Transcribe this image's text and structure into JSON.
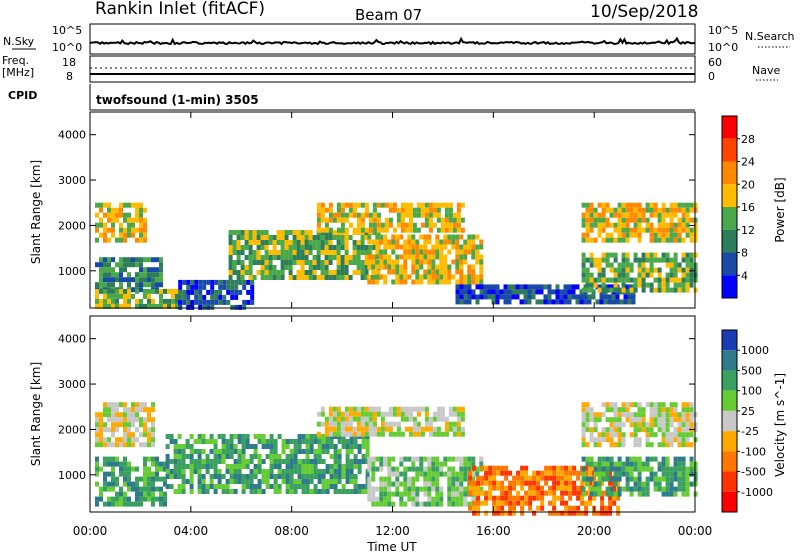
{
  "header": {
    "title": "Rankin Inlet (fitACF)",
    "beam": "Beam 07",
    "date": "10/Sep/2018"
  },
  "nsky_panel": {
    "left_label": "N.Sky",
    "right_label": "N.Search",
    "y_ticks": [
      "10^5",
      "10^0"
    ]
  },
  "freq_panel": {
    "left_label_1": "Freq.",
    "left_label_2": "[MHz]",
    "left_ticks": [
      "18",
      "8"
    ],
    "right_ticks": [
      "60",
      "0"
    ],
    "right_label": "Nave",
    "cpid_label": "CPID"
  },
  "cpid_text": "twofsound (1-min) 3505",
  "x_axis": {
    "title": "Time UT",
    "ticks": [
      "00:00",
      "04:00",
      "08:00",
      "12:00",
      "16:00",
      "20:00",
      "00:00"
    ]
  },
  "chart_data": [
    {
      "type": "heatmap",
      "name": "power",
      "ylabel": "Slant Range [km]",
      "ylim": [
        180,
        4500
      ],
      "yticks": [
        1000,
        2000,
        3000,
        4000
      ],
      "xlim": [
        0,
        24
      ],
      "colorbar": {
        "label": "Power [dB]",
        "ticks": [
          "28",
          "24",
          "20",
          "16",
          "12",
          "8",
          "4"
        ],
        "colors": [
          "#ff0000",
          "#ff4400",
          "#ff8800",
          "#ffbb00",
          "#4aa84a",
          "#2e7d5a",
          "#1a4aa8",
          "#0000ff"
        ]
      },
      "bands": [
        {
          "x0": 0.2,
          "x1": 2.8,
          "y0": 600,
          "y1": 1300,
          "level": 5
        },
        {
          "x0": 0.2,
          "x1": 2.2,
          "y0": 1700,
          "y1": 2500,
          "level": 3
        },
        {
          "x0": 0.2,
          "x1": 3.5,
          "y0": 200,
          "y1": 600,
          "level": 4
        },
        {
          "x0": 3.5,
          "x1": 6.5,
          "y0": 200,
          "y1": 800,
          "level": 6
        },
        {
          "x0": 5.5,
          "x1": 11.5,
          "y0": 800,
          "y1": 1900,
          "level": 4
        },
        {
          "x0": 9.0,
          "x1": 14.8,
          "y0": 1900,
          "y1": 2500,
          "level": 3
        },
        {
          "x0": 11.0,
          "x1": 15.5,
          "y0": 800,
          "y1": 1800,
          "level": 3
        },
        {
          "x0": 14.5,
          "x1": 21.5,
          "y0": 300,
          "y1": 700,
          "level": 6
        },
        {
          "x0": 19.5,
          "x1": 24.0,
          "y0": 1700,
          "y1": 2500,
          "level": 3
        },
        {
          "x0": 19.5,
          "x1": 24.0,
          "y0": 600,
          "y1": 1400,
          "level": 4
        }
      ]
    },
    {
      "type": "heatmap",
      "name": "velocity",
      "ylabel": "Slant Range [km]",
      "ylim": [
        180,
        4500
      ],
      "yticks": [
        1000,
        2000,
        3000,
        4000
      ],
      "xlim": [
        0,
        24
      ],
      "colorbar": {
        "label": "Velocity [m s^-1]",
        "ticks": [
          "1000",
          "500",
          "100",
          "25",
          "-25",
          "-100",
          "-500",
          "-1000"
        ],
        "colors": [
          "#1a3cb4",
          "#2d7a8c",
          "#3aa060",
          "#66cc33",
          "#c8c8c8",
          "#ffaa00",
          "#ff7700",
          "#ff3300",
          "#ff0000"
        ]
      },
      "bands": [
        {
          "x0": 0.2,
          "x1": 2.5,
          "y0": 1700,
          "y1": 2600,
          "level": 4
        },
        {
          "x0": 0.2,
          "x1": 3.0,
          "y0": 400,
          "y1": 1400,
          "level": 2
        },
        {
          "x0": 3.0,
          "x1": 11.0,
          "y0": 600,
          "y1": 1900,
          "level": 2
        },
        {
          "x0": 9.0,
          "x1": 14.8,
          "y0": 1900,
          "y1": 2500,
          "level": 4
        },
        {
          "x0": 11.0,
          "x1": 15.5,
          "y0": 300,
          "y1": 1400,
          "level": 3
        },
        {
          "x0": 15.0,
          "x1": 21.0,
          "y0": 200,
          "y1": 1200,
          "level": 6
        },
        {
          "x0": 19.5,
          "x1": 24.0,
          "y0": 1700,
          "y1": 2600,
          "level": 4
        },
        {
          "x0": 19.5,
          "x1": 24.0,
          "y0": 600,
          "y1": 1400,
          "level": 2
        }
      ]
    }
  ]
}
